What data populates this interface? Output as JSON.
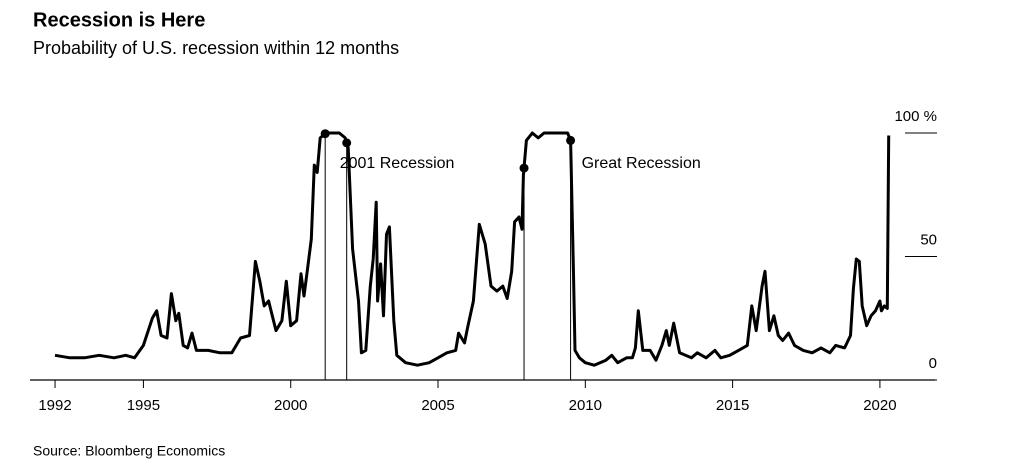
{
  "chart_data": {
    "type": "line",
    "title": "Recession is Here",
    "subtitle": "Probability of U.S. recession within 12 months",
    "source": "Source: Bloomberg Economics",
    "color": "#000000",
    "x": [
      1992.0,
      1992.5,
      1993.0,
      1993.5,
      1994.0,
      1994.4,
      1994.7,
      1995.0,
      1995.3,
      1995.45,
      1995.6,
      1995.8,
      1995.95,
      1996.1,
      1996.2,
      1996.35,
      1996.5,
      1996.65,
      1996.8,
      1997.2,
      1997.6,
      1998.0,
      1998.3,
      1998.6,
      1998.8,
      1998.95,
      1999.1,
      1999.25,
      1999.5,
      1999.7,
      1999.85,
      2000.0,
      2000.2,
      2000.35,
      2000.45,
      2000.55,
      2000.7,
      2000.8,
      2000.9,
      2001.0,
      2001.2,
      2001.4,
      2001.65,
      2001.85,
      2001.95,
      2002.1,
      2002.3,
      2002.4,
      2002.55,
      2002.7,
      2002.8,
      2002.9,
      2002.95,
      2003.05,
      2003.15,
      2003.25,
      2003.35,
      2003.5,
      2003.6,
      2003.9,
      2004.3,
      2004.7,
      2005.0,
      2005.3,
      2005.6,
      2005.7,
      2005.9,
      2006.0,
      2006.2,
      2006.4,
      2006.6,
      2006.8,
      2007.0,
      2007.2,
      2007.35,
      2007.5,
      2007.6,
      2007.75,
      2007.85,
      2007.9,
      2008.0,
      2008.2,
      2008.4,
      2008.6,
      2009.0,
      2009.4,
      2009.5,
      2009.6,
      2009.65,
      2009.8,
      2010.0,
      2010.3,
      2010.7,
      2010.9,
      2011.1,
      2011.4,
      2011.6,
      2011.7,
      2011.8,
      2011.95,
      2012.2,
      2012.4,
      2012.6,
      2012.75,
      2012.85,
      2013.0,
      2013.2,
      2013.4,
      2013.6,
      2013.8,
      2014.1,
      2014.4,
      2014.6,
      2014.9,
      2015.2,
      2015.5,
      2015.65,
      2015.8,
      2016.0,
      2016.1,
      2016.25,
      2016.4,
      2016.55,
      2016.7,
      2016.9,
      2017.1,
      2017.4,
      2017.7,
      2018.0,
      2018.3,
      2018.5,
      2018.8,
      2019.0,
      2019.1,
      2019.2,
      2019.3,
      2019.4,
      2019.55,
      2019.7,
      2019.85,
      2020.0,
      2020.05,
      2020.15,
      2020.25,
      2020.3
    ],
    "values": [
      10,
      9,
      9,
      10,
      9,
      10,
      9,
      14,
      25,
      28,
      18,
      17,
      35,
      24,
      27,
      14,
      13,
      19,
      12,
      12,
      11,
      11,
      17,
      18,
      48,
      40,
      30,
      32,
      20,
      24,
      40,
      22,
      24,
      43,
      34,
      43,
      57,
      87,
      84,
      98,
      100,
      100,
      100,
      98,
      94,
      53,
      32,
      11,
      12,
      38,
      49,
      72,
      32,
      47,
      26,
      59,
      62,
      24,
      10,
      7,
      6,
      7,
      9,
      11,
      12,
      19,
      15,
      21,
      32,
      63,
      55,
      38,
      36,
      38,
      33,
      44,
      64,
      66,
      61,
      83,
      97,
      100,
      98,
      100,
      100,
      100,
      97,
      43,
      12,
      9,
      7,
      6,
      8,
      10,
      7,
      9,
      9,
      13,
      28,
      12,
      12,
      8,
      14,
      20,
      14,
      23,
      11,
      10,
      9,
      11,
      9,
      12,
      9,
      10,
      12,
      14,
      30,
      20,
      38,
      44,
      20,
      26,
      18,
      16,
      19,
      14,
      12,
      11,
      13,
      11,
      14,
      13,
      18,
      37,
      49,
      48,
      30,
      22,
      26,
      28,
      32,
      28,
      30,
      29,
      99
    ],
    "xlim": [
      1991.15,
      2021.87
    ],
    "xticks": [
      1992,
      1995,
      2000,
      2005,
      2010,
      2015,
      2020
    ],
    "ylim": [
      0,
      100
    ],
    "yticks": [
      0,
      50,
      {
        "value": 100,
        "label": "100 %"
      }
    ],
    "recessions": [
      {
        "label": "2001 Recession",
        "start": 2001.17,
        "end": 2001.9
      },
      {
        "label": "Great Recession",
        "start": 2007.92,
        "end": 2009.5
      }
    ]
  }
}
